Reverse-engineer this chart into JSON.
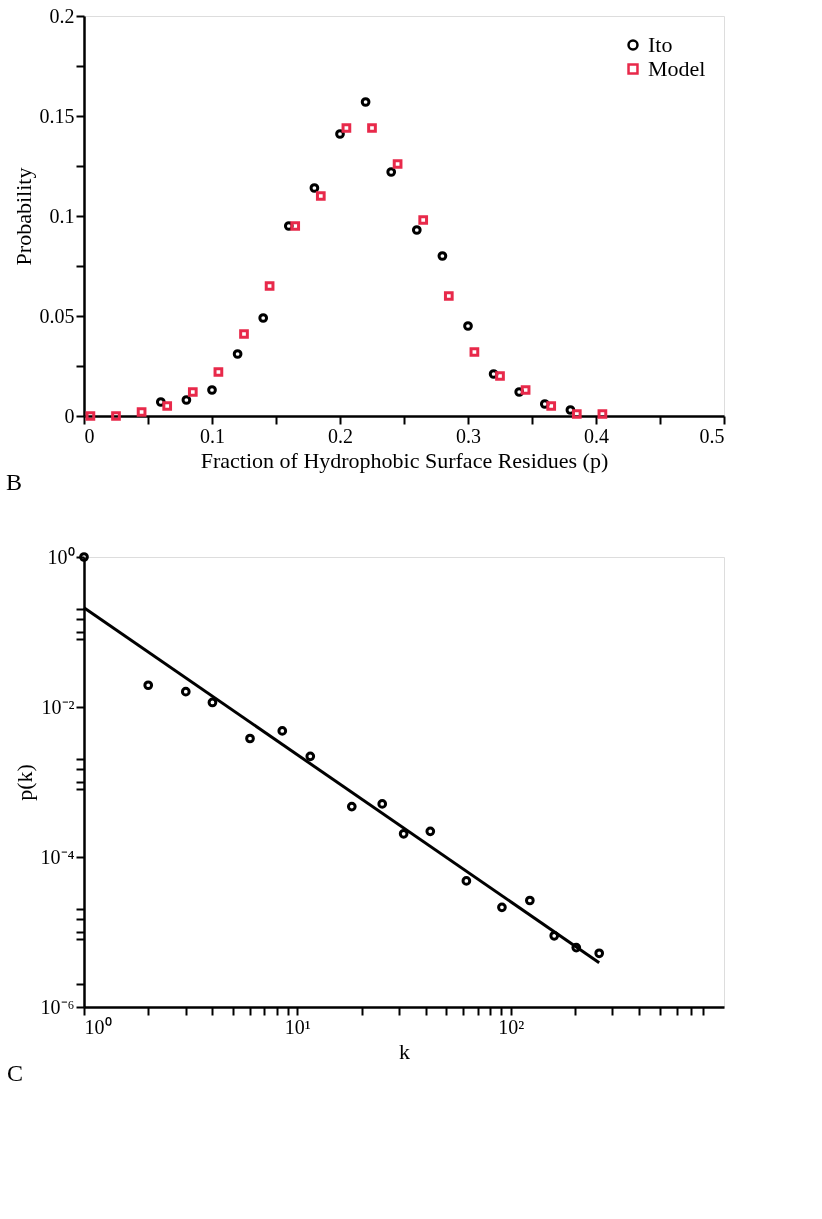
{
  "chart_data": [
    {
      "type": "scatter",
      "title": "B",
      "xlabel": "Fraction of Hydrophobic Surface Residues (p)",
      "ylabel": "Probability",
      "xlim": [
        0,
        0.5
      ],
      "xticks": [
        0,
        {
          "value": 0.05,
          "label": null
        },
        0.1,
        {
          "value": 0.15,
          "label": null
        },
        0.2,
        {
          "value": 0.25,
          "label": null
        },
        0.3,
        {
          "value": 0.35,
          "label": null
        },
        0.4,
        {
          "value": 0.45,
          "label": null
        },
        0.5
      ],
      "ylim": [
        0,
        0.2
      ],
      "yticks": [
        0,
        {
          "value": 0.025,
          "label": null
        },
        0.05,
        {
          "value": 0.075,
          "label": null
        },
        0.1,
        {
          "value": 0.125,
          "label": null
        },
        0.15,
        {
          "value": 0.175,
          "label": null
        },
        0.2
      ],
      "legend": "top right",
      "grid": false,
      "series": [
        {
          "name": "Ito",
          "color": "#000000",
          "marker": "circle",
          "x": [
            0.06,
            0.08,
            0.1,
            0.12,
            0.14,
            0.16,
            0.18,
            0.2,
            0.22,
            0.24,
            0.26,
            0.28,
            0.3,
            0.32,
            0.34,
            0.36,
            0.38
          ],
          "values": [
            0.007,
            0.008,
            0.013,
            0.031,
            0.049,
            0.095,
            0.114,
            0.141,
            0.157,
            0.122,
            0.093,
            0.08,
            0.045,
            0.021,
            0.012,
            0.006,
            0.003
          ]
        },
        {
          "name": "Model",
          "color": "#e8294a",
          "marker": "square",
          "x": [
            0.005,
            0.025,
            0.045,
            0.065,
            0.085,
            0.105,
            0.125,
            0.145,
            0.165,
            0.185,
            0.205,
            0.225,
            0.245,
            0.265,
            0.285,
            0.305,
            0.325,
            0.345,
            0.365,
            0.385,
            0.405
          ],
          "values": [
            0,
            0,
            0.002,
            0.005,
            0.012,
            0.022,
            0.041,
            0.065,
            0.095,
            0.11,
            0.144,
            0.144,
            0.126,
            0.098,
            0.06,
            0.032,
            0.02,
            0.013,
            0.005,
            0.001,
            0.001
          ]
        }
      ]
    },
    {
      "type": "scatter",
      "title": "C",
      "xlabel": "k",
      "ylabel": "p(k)",
      "log": "xy",
      "grid": false,
      "legend": false,
      "xlim": [
        1,
        1000
      ],
      "xticks": [
        {
          "value": 1,
          "label": "10⁰"
        },
        {
          "value": 2,
          "label": null
        },
        {
          "value": 3,
          "label": null
        },
        {
          "value": 4,
          "label": null
        },
        {
          "value": 5,
          "label": null
        },
        {
          "value": 6,
          "label": null
        },
        {
          "value": 7,
          "label": null
        },
        {
          "value": 8,
          "label": null
        },
        {
          "value": 9,
          "label": null
        },
        {
          "value": 10,
          "label": "10¹"
        },
        {
          "value": 20,
          "label": null
        },
        {
          "value": 30,
          "label": null
        },
        {
          "value": 40,
          "label": null
        },
        {
          "value": 50,
          "label": null
        },
        {
          "value": 60,
          "label": null
        },
        {
          "value": 70,
          "label": null
        },
        {
          "value": 80,
          "label": null
        },
        {
          "value": 90,
          "label": null
        },
        {
          "value": 100,
          "label": "10²"
        },
        {
          "value": 200,
          "label": null
        },
        {
          "value": 300,
          "label": null
        },
        {
          "value": 400,
          "label": null
        },
        {
          "value": 500,
          "label": null
        },
        {
          "value": 600,
          "label": null
        },
        {
          "value": 700,
          "label": null
        },
        {
          "value": 800,
          "label": null
        }
      ],
      "ylim": [
        1e-06,
        1
      ],
      "yticks": [
        {
          "value": 1,
          "label": "10⁰"
        },
        {
          "value": 0.2,
          "label": null
        },
        {
          "value": 0.15,
          "label": null
        },
        {
          "value": 0.1,
          "label": null
        },
        {
          "value": 0.08,
          "label": null
        },
        {
          "value": 0.01,
          "label": "10⁻²"
        },
        {
          "value": 0.002,
          "label": null
        },
        {
          "value": 0.0015,
          "label": null
        },
        {
          "value": 0.001,
          "label": null
        },
        {
          "value": 0.0008,
          "label": null
        },
        {
          "value": 0.0001,
          "label": "10⁻⁴"
        },
        {
          "value": 2e-05,
          "label": null
        },
        {
          "value": 1.5e-05,
          "label": null
        },
        {
          "value": 1e-05,
          "label": null
        },
        {
          "value": 8e-06,
          "label": null
        },
        {
          "value": 2e-06,
          "label": null
        },
        {
          "value": 1e-06,
          "label": "10⁻⁶"
        }
      ],
      "series": [
        {
          "color": "#000000",
          "marker": "circle",
          "x": [
            1,
            2,
            3,
            4,
            6,
            8.5,
            11.5,
            18,
            25,
            31.5,
            42,
            62,
            91,
            123,
            160,
            203,
            260
          ],
          "values": [
            1,
            0.0195,
            0.016,
            0.0115,
            0.0038,
            0.0048,
            0.0022,
            0.00047,
            0.00051,
            0.000204,
            0.00022,
            4.8e-05,
            2.13e-05,
            2.63e-05,
            8.9e-06,
            6.2e-06,
            5.2e-06
          ]
        },
        {
          "type": "line",
          "color": "#000000",
          "line_style": "solid",
          "x": [
            1,
            260
          ],
          "values": [
            0.21,
            3.9e-06
          ]
        }
      ]
    }
  ]
}
